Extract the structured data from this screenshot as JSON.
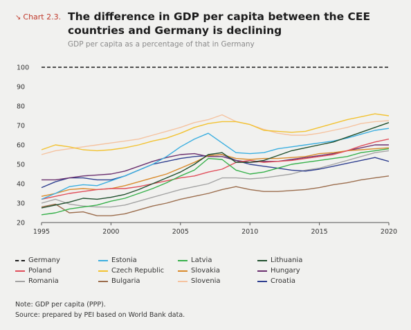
{
  "header": {
    "tag": "Chart 2.3.",
    "title": "The difference in GDP per capita between the CEE countries and Germany is declining",
    "subtitle": "GDP per capita as a percentage of that in Germany"
  },
  "notes": {
    "note": "Note: GDP per capita (PPP).",
    "source": "Source: prepared by PEI based on World Bank data."
  },
  "chart_data": {
    "type": "line",
    "x": [
      1995,
      1996,
      1997,
      1998,
      1999,
      2000,
      2001,
      2002,
      2003,
      2004,
      2005,
      2006,
      2007,
      2008,
      2009,
      2010,
      2011,
      2012,
      2013,
      2014,
      2015,
      2016,
      2017,
      2018,
      2019,
      2020
    ],
    "xticks": [
      "1995",
      "2000",
      "2005",
      "2010",
      "2015",
      "2020"
    ],
    "yticks": [
      "20",
      "30",
      "40",
      "50",
      "60",
      "70",
      "80",
      "90",
      "100"
    ],
    "ylim": [
      20,
      100
    ],
    "xlim": [
      1995,
      2020
    ],
    "grid": false,
    "legend_position": "bottom",
    "series": [
      {
        "name": "Germany",
        "color": "#1a1a1a",
        "dashed": true,
        "values": [
          100,
          100,
          100,
          100,
          100,
          100,
          100,
          100,
          100,
          100,
          100,
          100,
          100,
          100,
          100,
          100,
          100,
          100,
          100,
          100,
          100,
          100,
          100,
          100,
          100,
          100
        ]
      },
      {
        "name": "Estonia",
        "color": "#3aaee0",
        "values": [
          32,
          35,
          38.5,
          39.5,
          39,
          41.5,
          44,
          47,
          50,
          54,
          59,
          63,
          66,
          61,
          56,
          55.5,
          56,
          58,
          59,
          60,
          61,
          62,
          63.5,
          65.5,
          67.5,
          68.5
        ]
      },
      {
        "name": "Latvia",
        "color": "#36b04a",
        "values": [
          24,
          25,
          27,
          28,
          29,
          31,
          32.5,
          35,
          37.5,
          40.5,
          44,
          47,
          53,
          52.5,
          47,
          45,
          46,
          48,
          50,
          51,
          52,
          53,
          54,
          56,
          57,
          58
        ]
      },
      {
        "name": "Lithuania",
        "color": "#1f4e2c",
        "values": [
          27.5,
          29,
          30.5,
          32.5,
          32,
          33,
          34.5,
          37,
          40,
          43,
          46,
          50,
          55,
          56,
          51,
          51,
          52,
          54.5,
          57,
          58.5,
          60,
          61.5,
          64,
          66.5,
          69,
          71.5
        ]
      },
      {
        "name": "Poland",
        "color": "#e04e5a",
        "values": [
          32,
          33.5,
          35,
          36,
          37,
          37.5,
          37.5,
          38.5,
          40,
          41.5,
          43,
          44,
          46,
          47.5,
          51,
          52,
          51,
          51.5,
          52,
          53,
          54,
          55,
          57,
          59.5,
          61.5,
          63
        ]
      },
      {
        "name": "Czech Republic",
        "color": "#f2c230",
        "values": [
          57.5,
          60,
          59,
          57.5,
          57,
          57.5,
          58.5,
          60,
          62,
          63.5,
          66,
          69,
          71,
          72,
          72,
          70.5,
          67.5,
          67,
          66.5,
          67,
          69,
          71,
          73,
          74.5,
          76,
          75
        ]
      },
      {
        "name": "Slovakia",
        "color": "#d98a2b",
        "values": [
          33.5,
          35,
          37,
          37.5,
          37,
          37.5,
          39,
          41,
          43,
          45,
          48,
          51,
          54.5,
          55,
          53,
          52.5,
          53,
          53,
          53.5,
          54,
          55.5,
          56,
          57,
          57.5,
          58,
          58.5
        ]
      },
      {
        "name": "Hungary",
        "color": "#6a2f6e",
        "values": [
          42,
          42,
          43,
          44,
          44.5,
          45,
          46.5,
          49,
          51.5,
          53.5,
          55,
          55.5,
          54,
          54,
          52,
          51,
          51.5,
          51.5,
          52.5,
          53.5,
          54.5,
          55.5,
          57,
          58.5,
          60,
          60
        ]
      },
      {
        "name": "Romania",
        "color": "#a3a3a3",
        "values": [
          30,
          32,
          29.5,
          28.5,
          28,
          28,
          29,
          31,
          33,
          35,
          37,
          38.5,
          40,
          43,
          43,
          42.5,
          43,
          44,
          45,
          47,
          48,
          50,
          52,
          54,
          56,
          57
        ]
      },
      {
        "name": "Bulgaria",
        "color": "#9b6d4d",
        "values": [
          28,
          29.5,
          25,
          25.5,
          23.5,
          23.5,
          24.5,
          26.5,
          28.5,
          30,
          32,
          33.5,
          35,
          37,
          38.5,
          37,
          36,
          36,
          36.5,
          37,
          38,
          39.5,
          40.5,
          42,
          43,
          44
        ]
      },
      {
        "name": "Slovenia",
        "color": "#f5c3a0",
        "values": [
          55,
          57,
          58,
          59,
          60,
          61,
          62,
          63,
          65,
          67,
          69,
          71.5,
          73,
          75.5,
          72,
          70.5,
          68,
          66,
          65,
          65,
          66,
          67.5,
          69,
          71,
          72,
          72.5
        ]
      },
      {
        "name": "Croatia",
        "color": "#2f3f8f",
        "values": [
          38,
          41,
          43,
          43,
          42,
          42,
          44,
          47,
          50,
          51.5,
          53,
          54,
          54.5,
          55,
          52,
          50,
          49,
          48,
          47,
          46.5,
          47.5,
          49,
          50.5,
          52,
          53.5,
          51.5
        ]
      }
    ]
  }
}
